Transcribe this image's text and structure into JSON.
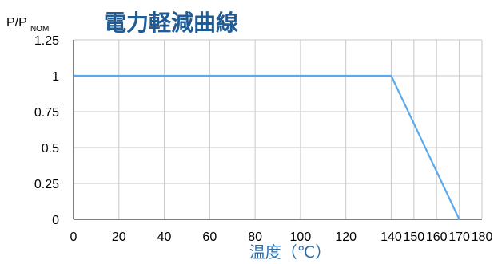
{
  "chart_data": {
    "type": "line",
    "title": "電力軽減曲線",
    "ylabel_main": "P/P",
    "ylabel_sub": "NOM",
    "xlabel": "温度（℃）",
    "xlim": [
      0,
      180
    ],
    "ylim": [
      0,
      1.25
    ],
    "x_ticks": [
      0,
      20,
      40,
      60,
      80,
      100,
      120,
      140,
      150,
      160,
      170,
      180
    ],
    "x_tick_labels": [
      "0",
      "20",
      "40",
      "60",
      "80",
      "100",
      "120",
      "140",
      "150",
      "160",
      "170",
      "180"
    ],
    "y_ticks": [
      0,
      0.25,
      0.5,
      0.75,
      1,
      1.25
    ],
    "y_tick_labels": [
      "0",
      "0.25",
      "0.5",
      "0.75",
      "1",
      "1.25"
    ],
    "grid": true,
    "colors": {
      "line": "#5aa9ee",
      "title": "#1f5b94",
      "xlabel": "#2f6ea7",
      "grid": "#c8c8c8",
      "axis": "#000000",
      "tick_text": "#000000"
    },
    "series": [
      {
        "x": [
          0,
          140,
          170
        ],
        "y": [
          1,
          1,
          0
        ]
      }
    ]
  }
}
